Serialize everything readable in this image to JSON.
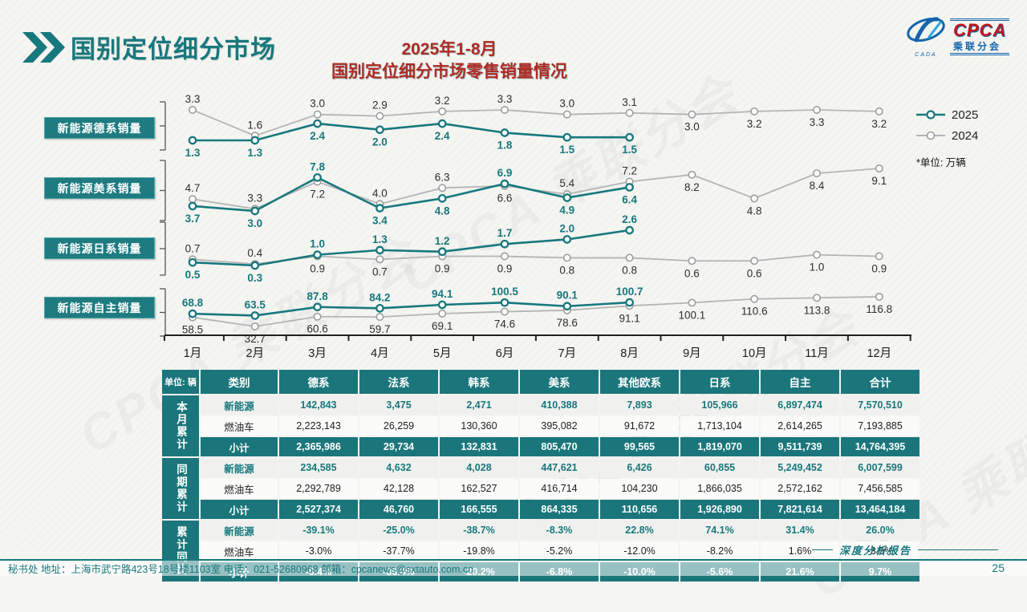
{
  "page": {
    "title": "国别定位细分市场",
    "subtitle_line1": "2025年1-8月",
    "subtitle_line2": "国别定位细分市场零售销量情况",
    "footer": "秘书处  地址：上海市武宁路423号18号楼1103室 电话：021-52680968  邮箱：cpcanews@sxtauto.com.cn",
    "report_type": "深度分析报告",
    "page_number": "25",
    "watermark": "CPCA 乘联分会"
  },
  "logo": {
    "cpca": "CPCA",
    "subtitle": "乘联分会",
    "cada": "CADA"
  },
  "legend": {
    "series_2025": "2025",
    "series_2024": "2024",
    "unit_note": "*单位: 万辆"
  },
  "colors": {
    "teal": "#17787D",
    "gray_line": "#B5B5B5",
    "gray_marker": "#9E9E9E",
    "label_dark": "#2E2E2E",
    "red_title": "#AE2B24"
  },
  "chart_data": {
    "type": "line",
    "x_labels": [
      "1月",
      "2月",
      "3月",
      "4月",
      "5月",
      "6月",
      "7月",
      "8月",
      "9月",
      "10月",
      "11月",
      "12月"
    ],
    "unit": "万辆",
    "legend_position": "right",
    "charts": [
      {
        "label": "新能源德系销量",
        "series": [
          {
            "name": "2025",
            "values": [
              1.3,
              1.3,
              2.4,
              2.0,
              2.4,
              1.8,
              1.5,
              1.5
            ]
          },
          {
            "name": "2024",
            "values": [
              3.3,
              1.6,
              3.0,
              2.9,
              3.2,
              3.3,
              3.0,
              3.1,
              3.0,
              3.2,
              3.3,
              3.2
            ]
          }
        ]
      },
      {
        "label": "新能源美系销量",
        "series": [
          {
            "name": "2025",
            "values": [
              3.7,
              3.0,
              7.8,
              3.4,
              4.8,
              6.9,
              4.9,
              6.4
            ]
          },
          {
            "name": "2024",
            "values": [
              4.7,
              3.3,
              7.2,
              4.0,
              6.3,
              6.6,
              5.4,
              7.2,
              8.2,
              4.8,
              8.4,
              9.1
            ]
          }
        ]
      },
      {
        "label": "新能源日系销量",
        "series": [
          {
            "name": "2025",
            "values": [
              0.5,
              0.3,
              1.0,
              1.3,
              1.2,
              1.7,
              2.0,
              2.6
            ]
          },
          {
            "name": "2024",
            "values": [
              0.7,
              0.4,
              0.9,
              0.7,
              0.9,
              0.9,
              0.8,
              0.8,
              0.6,
              0.6,
              1.0,
              0.9
            ]
          }
        ]
      },
      {
        "label": "新能源自主销量",
        "series": [
          {
            "name": "2025",
            "values": [
              68.8,
              63.5,
              87.8,
              84.2,
              94.1,
              100.5,
              90.1,
              100.7
            ]
          },
          {
            "name": "2024",
            "values": [
              58.5,
              32.7,
              60.6,
              59.7,
              69.1,
              74.6,
              78.6,
              91.1,
              100.1,
              110.6,
              113.8,
              116.8
            ]
          }
        ]
      }
    ]
  },
  "table": {
    "unit_label": "单位: 辆",
    "columns": [
      "类别",
      "德系",
      "法系",
      "韩系",
      "美系",
      "其他欧系",
      "日系",
      "自主",
      "合计"
    ],
    "groups": [
      {
        "label": "本月累计",
        "rows": [
          {
            "type": "nev",
            "label": "新能源",
            "values": [
              "142,843",
              "3,475",
              "2,471",
              "410,388",
              "7,893",
              "105,966",
              "6,897,474",
              "7,570,510"
            ]
          },
          {
            "type": "ice",
            "label": "燃油车",
            "values": [
              "2,223,143",
              "26,259",
              "130,360",
              "395,082",
              "91,672",
              "1,713,104",
              "2,614,265",
              "7,193,885"
            ]
          },
          {
            "type": "subtotal",
            "label": "小计",
            "values": [
              "2,365,986",
              "29,734",
              "132,831",
              "805,470",
              "99,565",
              "1,819,070",
              "9,511,739",
              "14,764,395"
            ]
          }
        ]
      },
      {
        "label": "同期累计",
        "rows": [
          {
            "type": "nev",
            "label": "新能源",
            "values": [
              "234,585",
              "4,632",
              "4,028",
              "447,621",
              "6,426",
              "60,855",
              "5,249,452",
              "6,007,599"
            ]
          },
          {
            "type": "ice",
            "label": "燃油车",
            "values": [
              "2,292,789",
              "42,128",
              "162,527",
              "416,714",
              "104,230",
              "1,866,035",
              "2,572,162",
              "7,456,585"
            ]
          },
          {
            "type": "subtotal",
            "label": "小计",
            "values": [
              "2,527,374",
              "46,760",
              "166,555",
              "864,335",
              "110,656",
              "1,926,890",
              "7,821,614",
              "13,464,184"
            ]
          }
        ]
      },
      {
        "label": "累计同比",
        "rows": [
          {
            "type": "nev",
            "label": "新能源",
            "values": [
              "-39.1%",
              "-25.0%",
              "-38.7%",
              "-8.3%",
              "22.8%",
              "74.1%",
              "31.4%",
              "26.0%"
            ]
          },
          {
            "type": "ice",
            "label": "燃油车",
            "values": [
              "-3.0%",
              "-37.7%",
              "-19.8%",
              "-5.2%",
              "-12.0%",
              "-8.2%",
              "1.6%",
              "-3.5%"
            ]
          },
          {
            "type": "subtotal",
            "label": "小计",
            "values": [
              "-6.4%",
              "-36.4%",
              "-20.2%",
              "-6.8%",
              "-10.0%",
              "-5.6%",
              "21.6%",
              "9.7%"
            ]
          }
        ]
      }
    ]
  }
}
